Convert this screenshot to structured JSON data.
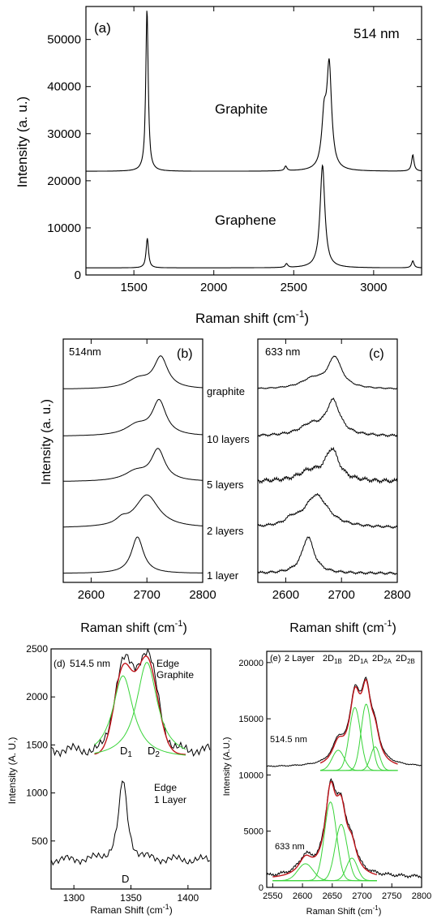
{
  "chart_data": [
    {
      "id": "a",
      "type": "line",
      "panel_label": "(a)",
      "wavelength_label": "514 nm",
      "xlabel": "Raman shift (cm",
      "xlabel_sup": "-1",
      "xlabel_tail": ")",
      "ylabel": "Intensity (a. u.)",
      "xlim": [
        1200,
        3300
      ],
      "ylim": [
        0,
        57000
      ],
      "xticks": [
        "1500",
        "2000",
        "2500",
        "3000"
      ],
      "yticks": [
        "0",
        "10000",
        "20000",
        "30000",
        "40000",
        "50000"
      ],
      "series": [
        {
          "name": "Graphite",
          "baseline": 22000,
          "peaks": [
            {
              "x": 1582,
              "y": 56500
            },
            {
              "x": 2450,
              "y": 23000
            },
            {
              "x": 2690,
              "y": 32000
            },
            {
              "x": 2722,
              "y": 43500
            },
            {
              "x": 3245,
              "y": 25500
            }
          ]
        },
        {
          "name": "Graphene",
          "baseline": 1500,
          "peaks": [
            {
              "x": 1584,
              "y": 7800
            },
            {
              "x": 2455,
              "y": 2300
            },
            {
              "x": 2680,
              "y": 23300
            },
            {
              "x": 3245,
              "y": 3000
            }
          ]
        }
      ]
    },
    {
      "id": "b",
      "type": "line",
      "panel_label": "(b)",
      "wavelength_label": "514nm",
      "xlabel": "Raman shift (cm",
      "xlabel_sup": "-1",
      "xlabel_tail": ")",
      "ylabel": "Intensity (a. u.)",
      "xlim": [
        2550,
        2800
      ],
      "xticks": [
        "2600",
        "2700",
        "2800"
      ],
      "series": [
        {
          "name": "graphite",
          "peak_x": 2725
        },
        {
          "name": "10 layers",
          "peak_x": 2722
        },
        {
          "name": "5 layers",
          "peak_x": 2720
        },
        {
          "name": "2 layers",
          "peak_x": 2700
        },
        {
          "name": "1 layer",
          "peak_x": 2683
        }
      ]
    },
    {
      "id": "c",
      "type": "line",
      "panel_label": "(c)",
      "wavelength_label": "633 nm",
      "xlabel": "Raman shift (cm",
      "xlabel_sup": "-1",
      "xlabel_tail": ")",
      "xlim": [
        2550,
        2800
      ],
      "xticks": [
        "2600",
        "2700",
        "2800"
      ],
      "series": [
        {
          "name": "graphite",
          "peak_x": 2688
        },
        {
          "name": "10 layers",
          "peak_x": 2685
        },
        {
          "name": "5 layers",
          "peak_x": 2683
        },
        {
          "name": "2 layers",
          "peak_x": 2655
        },
        {
          "name": "1 layer",
          "peak_x": 2640
        }
      ]
    },
    {
      "id": "d",
      "type": "line",
      "panel_label": "(d)",
      "wavelength_label": "514.5 nm",
      "xlabel": "Raman Shift (cm",
      "xlabel_sup": "-1",
      "xlabel_tail": ")",
      "ylabel": "Intensity (A. U.)",
      "xlim": [
        1280,
        1420
      ],
      "ylim": [
        0,
        2500
      ],
      "xticks": [
        "1300",
        "1350",
        "1400"
      ],
      "yticks": [
        "500",
        "1000",
        "1500",
        "2000",
        "2500"
      ],
      "annotations": {
        "graphite_1": "Edge",
        "graphite_2": "Graphite",
        "layer_1": "Edge",
        "layer_2": "1 Layer",
        "d1": "D",
        "d1_sub": "1",
        "d2": "D",
        "d2_sub": "2",
        "d": "D"
      },
      "fits": [
        {
          "center": 1343,
          "height": 860,
          "baseline": 1400
        },
        {
          "center": 1364,
          "height": 1000,
          "baseline": 1400
        }
      ]
    },
    {
      "id": "e",
      "type": "line",
      "panel_label": "(e)",
      "label_2layer": "2 Layer",
      "xlabel": "Raman Shift (cm",
      "xlabel_sup": "-1",
      "xlabel_tail": ")",
      "ylabel": "Intensity (A.U.)",
      "xlim": [
        2540,
        2800
      ],
      "ylim": [
        0,
        21000
      ],
      "xticks": [
        "2550",
        "2600",
        "2650",
        "2700",
        "2750",
        "2800"
      ],
      "yticks": [
        "0",
        "5000",
        "10000",
        "15000",
        "20000"
      ],
      "wavelengths": [
        "514.5 nm",
        "633 nm"
      ],
      "components": [
        {
          "base": "2D",
          "sub": "1B"
        },
        {
          "base": "2D",
          "sub": "1A"
        },
        {
          "base": "2D",
          "sub": "2A"
        },
        {
          "base": "2D",
          "sub": "2B"
        }
      ]
    }
  ]
}
